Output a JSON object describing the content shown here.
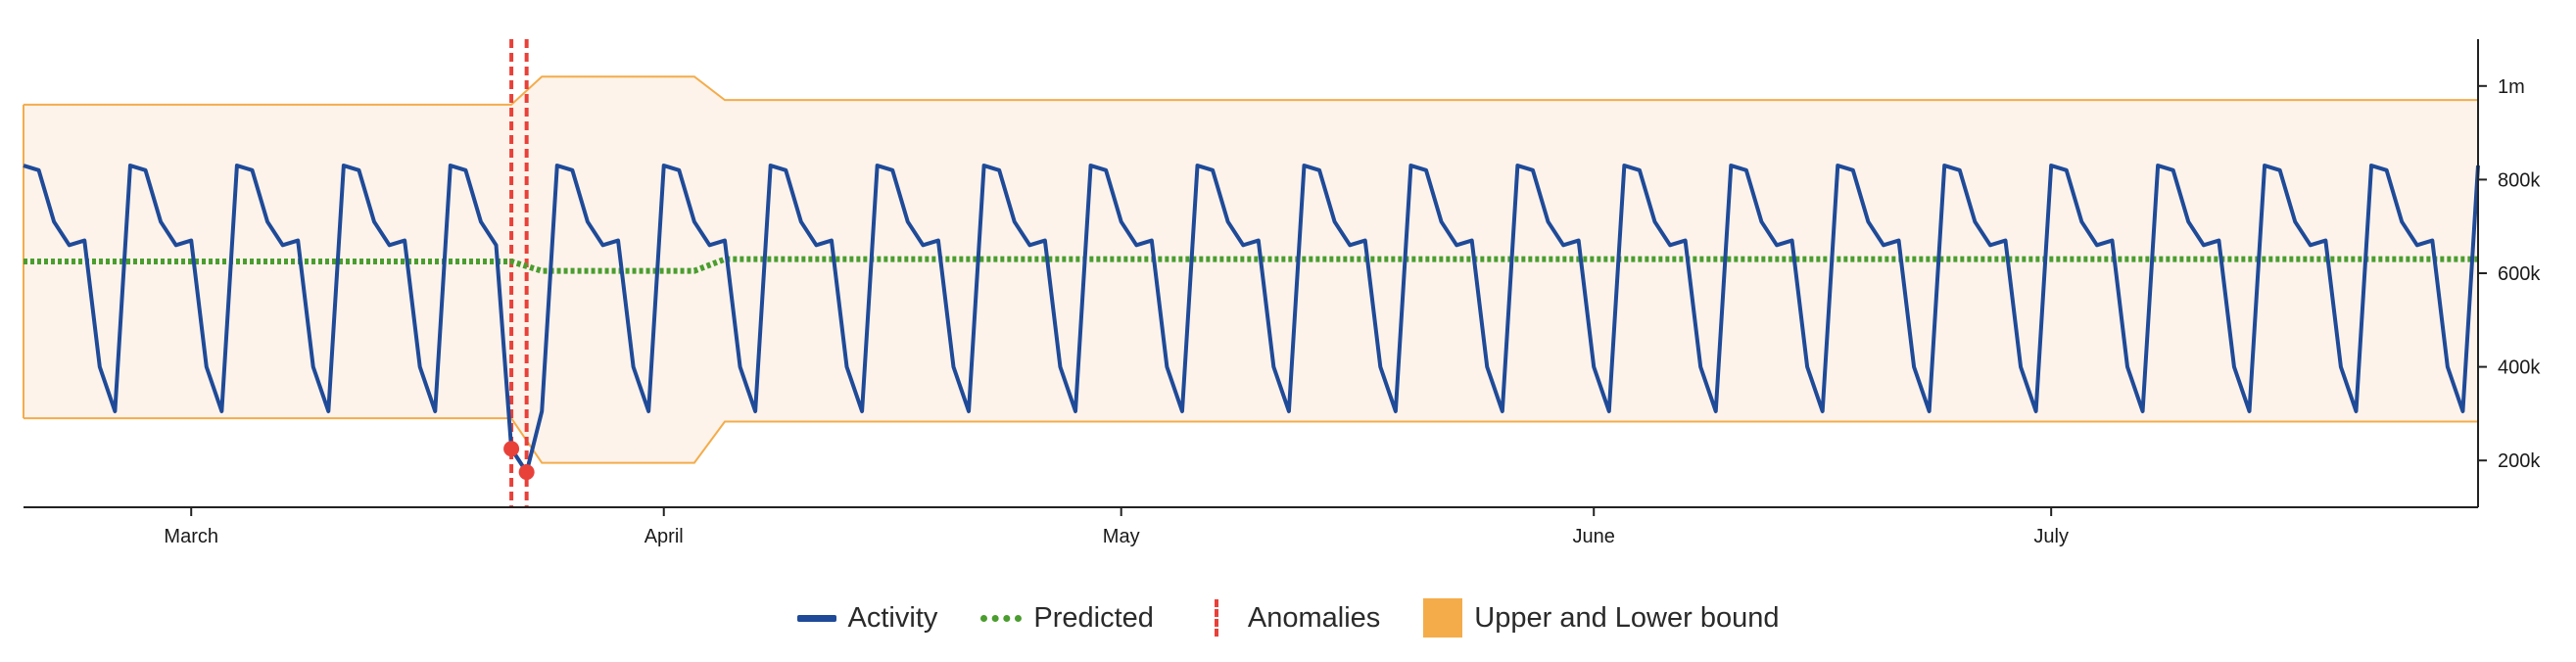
{
  "chart_data": {
    "type": "line",
    "title": "",
    "xlabel": "",
    "ylabel": "",
    "x_range": [
      "2024-02-19",
      "2024-07-29"
    ],
    "ylim": [
      100000,
      1100000
    ],
    "y_axis_position": "right",
    "grid": false,
    "legend_position": "bottom-center",
    "x_ticks": [
      {
        "date": "2024-03-01",
        "label": "March"
      },
      {
        "date": "2024-04-01",
        "label": "April"
      },
      {
        "date": "2024-05-01",
        "label": "May"
      },
      {
        "date": "2024-06-01",
        "label": "June"
      },
      {
        "date": "2024-07-01",
        "label": "July"
      }
    ],
    "y_ticks": [
      {
        "value": 200000,
        "label": "200k"
      },
      {
        "value": 400000,
        "label": "400k"
      },
      {
        "value": 600000,
        "label": "600k"
      },
      {
        "value": 800000,
        "label": "800k"
      },
      {
        "value": 1000000,
        "label": "1m"
      }
    ],
    "series": [
      {
        "name": "Activity",
        "kind": "line",
        "color": "#1f4a98",
        "weekly_pattern": [
          830000,
          820000,
          710000,
          660000,
          670000,
          400000,
          305000
        ]
      },
      {
        "name": "Predicted",
        "kind": "dotted",
        "color": "#4a9d2e",
        "segments": [
          {
            "from": "2024-02-19",
            "to": "2024-03-22",
            "value": 625000
          },
          {
            "from": "2024-03-24",
            "to": "2024-04-03",
            "value": 605000
          },
          {
            "from": "2024-04-05",
            "to": "2024-07-29",
            "value": 630000
          }
        ]
      },
      {
        "name": "Anomalies",
        "kind": "anomaly",
        "color": "#e8413a",
        "points": [
          {
            "date": "2024-03-22",
            "value": 225000
          },
          {
            "date": "2024-03-23",
            "value": 175000
          }
        ]
      },
      {
        "name": "Upper and Lower bound",
        "kind": "band",
        "color": "#f4ac4a",
        "fill": "#fdf3ea",
        "segments": [
          {
            "from": "2024-02-19",
            "to": "2024-03-22",
            "upper": 960000,
            "lower": 290000
          },
          {
            "from": "2024-03-24",
            "to": "2024-04-03",
            "upper": 1020000,
            "lower": 195000
          },
          {
            "from": "2024-04-05",
            "to": "2024-07-29",
            "upper": 970000,
            "lower": 283000
          }
        ]
      }
    ]
  },
  "legend": {
    "items": [
      {
        "label": "Activity"
      },
      {
        "label": "Predicted"
      },
      {
        "label": "Anomalies"
      },
      {
        "label": "Upper and Lower bound"
      }
    ]
  }
}
